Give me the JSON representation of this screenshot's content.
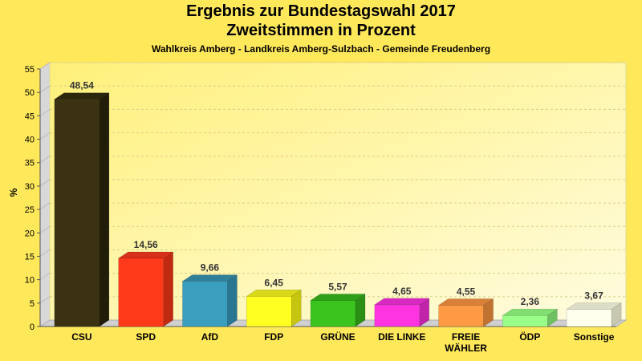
{
  "header": {
    "title": "Ergebnis zur Bundestagswahl 2017",
    "subtitle": "Zweitstimmen in Prozent",
    "subsubtitle": "Wahlkreis Amberg - Landkreis Amberg-Sulzbach - Gemeinde Freudenberg"
  },
  "chart_data": {
    "type": "bar",
    "title": "Ergebnis zur Bundestagswahl 2017",
    "subtitle": "Zweitstimmen in Prozent",
    "ylabel": "%",
    "ylim": [
      0,
      55
    ],
    "yticks": [
      0,
      5,
      10,
      15,
      20,
      25,
      30,
      35,
      40,
      45,
      50,
      55
    ],
    "grid": true,
    "categories": [
      "CSU",
      "SPD",
      "AfD",
      "FDP",
      "GRÜNE",
      "DIE LINKE",
      "FREIE WÄHLER",
      "ÖDP",
      "Sonstige"
    ],
    "category_lines": [
      [
        "CSU"
      ],
      [
        "SPD"
      ],
      [
        "AfD"
      ],
      [
        "FDP"
      ],
      [
        "GRÜNE"
      ],
      [
        "DIE LINKE"
      ],
      [
        "FREIE",
        "WÄHLER"
      ],
      [
        "ÖDP"
      ],
      [
        "Sonstige"
      ]
    ],
    "values": [
      48.54,
      14.56,
      9.66,
      6.45,
      5.57,
      4.65,
      4.55,
      2.36,
      3.67
    ],
    "value_labels": [
      "48,54",
      "14,56",
      "9,66",
      "6,45",
      "5,57",
      "4,65",
      "4,55",
      "2,36",
      "3,67"
    ],
    "colors": [
      "#3A3210",
      "#FF3A1A",
      "#3A9FBF",
      "#FFFF22",
      "#3CC41E",
      "#FF33E0",
      "#FF9A44",
      "#99FF88",
      "#FFFFEE"
    ],
    "side_colors": [
      "#221D08",
      "#C02A10",
      "#2A7590",
      "#C6C610",
      "#2A8F14",
      "#C024A8",
      "#C07230",
      "#6FC060",
      "#C8C8B0"
    ],
    "top_colors": [
      "#2C260C",
      "#D8301A",
      "#307F99",
      "#D8D818",
      "#30A018",
      "#D82AC0",
      "#D88038",
      "#80DF70",
      "#DEDEC8"
    ]
  }
}
